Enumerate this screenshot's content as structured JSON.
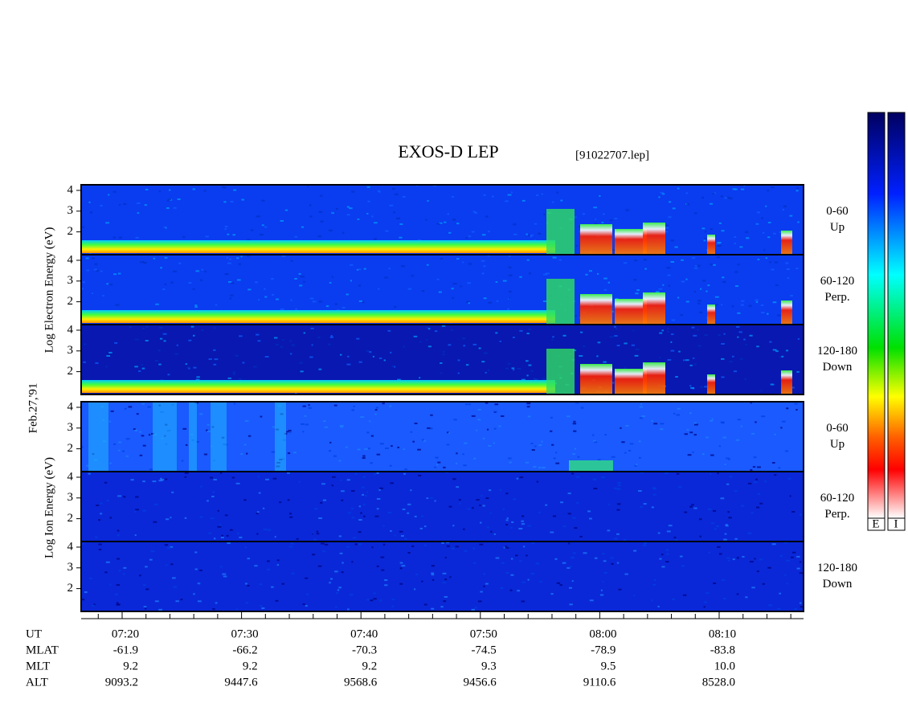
{
  "header": {
    "title": "EXOS-D LEP",
    "file": "[91022707.lep]"
  },
  "date": "Feb.27,'91",
  "electron_axis_label": "Log Electron Energy (eV)",
  "ion_axis_label": "Log Ion Energy (eV)",
  "ylim": [
    0.9,
    4.27
  ],
  "panels": [
    {
      "species": "electron",
      "angle": "0-60",
      "direction": "Up",
      "yticks": [
        2,
        3,
        4
      ]
    },
    {
      "species": "electron",
      "angle": "60-120",
      "direction": "Perp.",
      "yticks": [
        2,
        3,
        4
      ]
    },
    {
      "species": "electron",
      "angle": "120-180",
      "direction": "Down",
      "yticks": [
        2,
        3,
        4
      ]
    },
    {
      "species": "ion",
      "angle": "0-60",
      "direction": "Up",
      "yticks": [
        2,
        3,
        4
      ]
    },
    {
      "species": "ion",
      "angle": "60-120",
      "direction": "Perp.",
      "yticks": [
        2,
        3,
        4
      ]
    },
    {
      "species": "ion",
      "angle": "120-180",
      "direction": "Down",
      "yticks": [
        2,
        3,
        4
      ]
    }
  ],
  "orbit": {
    "row_labels": [
      "UT",
      "MLAT",
      "MLT",
      "ALT"
    ],
    "columns": [
      [
        "07:20",
        "-61.9",
        "9.2",
        "9093.2"
      ],
      [
        "07:30",
        "-66.2",
        "9.2",
        "9447.6"
      ],
      [
        "07:40",
        "-70.3",
        "9.2",
        "9568.6"
      ],
      [
        "07:50",
        "-74.5",
        "9.3",
        "9456.6"
      ],
      [
        "08:00",
        "-78.9",
        "9.5",
        "9110.6"
      ],
      [
        "08:10",
        "-83.8",
        "10.0",
        "8528.0"
      ]
    ]
  },
  "colorbar_labels": [
    "E",
    "I"
  ]
}
